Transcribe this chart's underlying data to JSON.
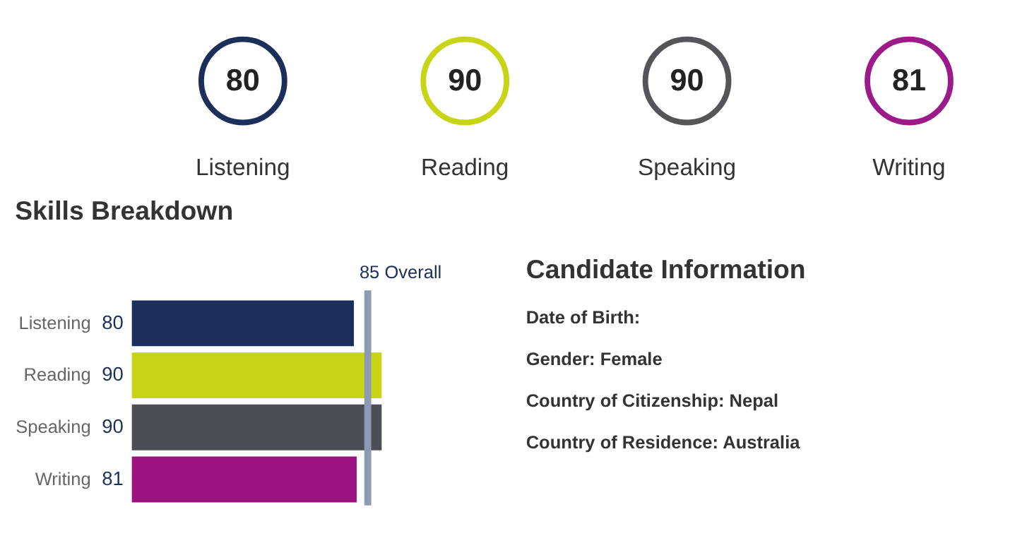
{
  "chart_data": [
    {
      "type": "other",
      "categories": [
        "Listening",
        "Reading",
        "Speaking",
        "Writing"
      ],
      "values": [
        80,
        90,
        90,
        81
      ],
      "colors": [
        "#1c2f5a",
        "#c8d416",
        "#555559",
        "#9c1a8a"
      ],
      "data_labels": true
    },
    {
      "type": "bar",
      "orientation": "horizontal",
      "title": "Skills Breakdown",
      "categories": [
        "Listening",
        "Reading",
        "Speaking",
        "Writing"
      ],
      "values": [
        80,
        90,
        90,
        81
      ],
      "colors": [
        "#1c2f5a",
        "#c8d416",
        "#4d4d55",
        "#9c127f"
      ],
      "xlim": [
        0,
        90
      ],
      "tick_labels": false,
      "data_labels": true,
      "ref_lines": [
        {
          "axis": "x",
          "value": 85,
          "label": "85 Overall",
          "color": "#8a9bb3"
        }
      ]
    },
    {
      "type": "other",
      "title": "Candidate Information",
      "annotations": [
        "Date of Birth:",
        "Gender: Female",
        "Country of Citizenship: Nepal",
        "Country of Residence: Australia"
      ]
    }
  ]
}
